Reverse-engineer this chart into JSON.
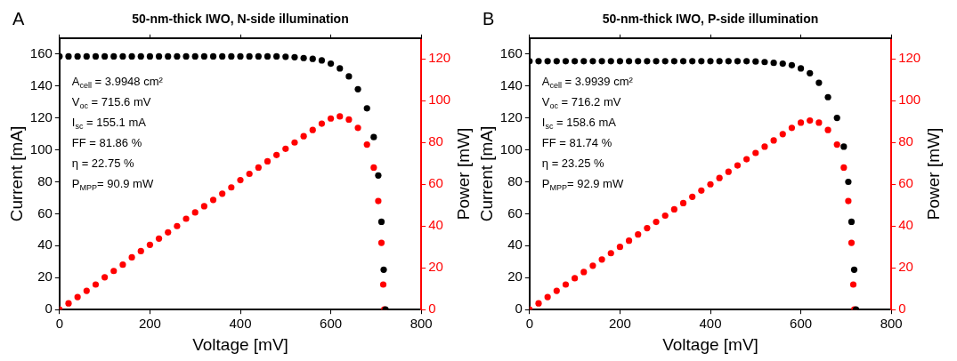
{
  "chart_data": [
    {
      "type": "scatter",
      "title": "50-nm-thick IWO, N-side illumination",
      "xlabel": "Voltage [mV]",
      "ylabel": "Current [mA]",
      "y2label": "Power [mW]",
      "xlim": [
        0,
        800
      ],
      "xticks": [
        0,
        200,
        400,
        600,
        800
      ],
      "ylim": [
        0,
        170
      ],
      "yticks": [
        0,
        20,
        40,
        60,
        80,
        100,
        120,
        140,
        160
      ],
      "y2lim": [
        0,
        130
      ],
      "y2ticks": [
        0,
        20,
        40,
        60,
        80,
        100,
        120
      ],
      "grid": false,
      "legend": false,
      "marker": "circle",
      "annotations": [
        "A",
        "A$_{cell}$ = 3.9948 cm²",
        "V$_{oc}$ = 715.6 mV",
        "I$_{sc}$ = 155.1 mA",
        "FF = 81.86 %",
        "η = 22.75 %",
        "P$_{MPP}$= 90.9 mW"
      ],
      "series": [
        {
          "color": "#000000",
          "x": [
            0,
            20,
            40,
            60,
            80,
            100,
            120,
            140,
            160,
            180,
            200,
            220,
            240,
            260,
            280,
            300,
            320,
            340,
            360,
            380,
            400,
            420,
            440,
            460,
            480,
            500,
            520,
            540,
            560,
            580,
            600,
            620,
            640,
            660,
            680,
            695,
            705,
            712,
            717,
            721
          ],
          "values": [
            158.5,
            158.5,
            158.5,
            158.5,
            158.5,
            158.5,
            158.5,
            158.5,
            158.5,
            158.5,
            158.5,
            158.5,
            158.5,
            158.5,
            158.5,
            158.5,
            158.5,
            158.5,
            158.5,
            158.5,
            158.5,
            158.5,
            158.5,
            158.5,
            158.5,
            158.3,
            158,
            157.5,
            157,
            156,
            154,
            151,
            146,
            138,
            126,
            108,
            84,
            55,
            25,
            0
          ]
        },
        {
          "color": "#ff0000",
          "axis": "y2",
          "x": [
            0,
            20,
            40,
            60,
            80,
            100,
            120,
            140,
            160,
            180,
            200,
            220,
            240,
            260,
            280,
            300,
            320,
            340,
            360,
            380,
            400,
            420,
            440,
            460,
            480,
            500,
            520,
            540,
            560,
            580,
            600,
            620,
            640,
            660,
            680,
            695,
            705,
            712,
            716,
            718
          ],
          "values": [
            0,
            3,
            6,
            9,
            12,
            15.5,
            18.5,
            21.5,
            25,
            28,
            31,
            34,
            37,
            40,
            43.5,
            46.5,
            49.5,
            52.5,
            55.5,
            58.5,
            62,
            65,
            68,
            71,
            74,
            77,
            80,
            83,
            86,
            89,
            91.5,
            92.5,
            91,
            87,
            79,
            68,
            52,
            32,
            12,
            0
          ]
        }
      ]
    },
    {
      "type": "scatter",
      "title": "50-nm-thick IWO, P-side illumination",
      "xlabel": "Voltage [mV]",
      "ylabel": "Current [mA]",
      "y2label": "Power [mW]",
      "xlim": [
        0,
        800
      ],
      "xticks": [
        0,
        200,
        400,
        600,
        800
      ],
      "ylim": [
        0,
        170
      ],
      "yticks": [
        0,
        20,
        40,
        60,
        80,
        100,
        120,
        140,
        160
      ],
      "y2lim": [
        0,
        130
      ],
      "y2ticks": [
        0,
        20,
        40,
        60,
        80,
        100,
        120
      ],
      "grid": false,
      "legend": false,
      "marker": "circle",
      "annotations": [
        "B",
        "A$_{cell}$ = 3.9939 cm²",
        "V$_{oc}$ = 716.2 mV",
        "I$_{sc}$ = 158.6 mA",
        "FF = 81.74 %",
        "η = 23.25 %",
        "P$_{MPP}$= 92.9 mW"
      ],
      "series": [
        {
          "color": "#000000",
          "x": [
            0,
            20,
            40,
            60,
            80,
            100,
            120,
            140,
            160,
            180,
            200,
            220,
            240,
            260,
            280,
            300,
            320,
            340,
            360,
            380,
            400,
            420,
            440,
            460,
            480,
            500,
            520,
            540,
            560,
            580,
            600,
            620,
            640,
            660,
            680,
            695,
            705,
            712,
            718,
            722
          ],
          "values": [
            155.5,
            155.5,
            155.5,
            155.5,
            155.5,
            155.5,
            155.5,
            155.5,
            155.5,
            155.5,
            155.5,
            155.5,
            155.5,
            155.5,
            155.5,
            155.5,
            155.5,
            155.5,
            155.5,
            155.5,
            155.5,
            155.5,
            155.5,
            155.5,
            155.5,
            155.3,
            155,
            154.5,
            154,
            153,
            151,
            148,
            142,
            133,
            120,
            102,
            80,
            55,
            25,
            0
          ]
        },
        {
          "color": "#ff0000",
          "axis": "y2",
          "x": [
            0,
            20,
            40,
            60,
            80,
            100,
            120,
            140,
            160,
            180,
            200,
            220,
            240,
            260,
            280,
            300,
            320,
            340,
            360,
            380,
            400,
            420,
            440,
            460,
            480,
            500,
            520,
            540,
            560,
            580,
            600,
            620,
            640,
            660,
            680,
            695,
            705,
            712,
            716,
            718
          ],
          "values": [
            0,
            3,
            6,
            9,
            12,
            15,
            18,
            21,
            24,
            27,
            30,
            33,
            36,
            39,
            42,
            45,
            48,
            51,
            54,
            57,
            60,
            63,
            66,
            69,
            72,
            75,
            78,
            81,
            84,
            87,
            89.5,
            90.5,
            89.5,
            86,
            79,
            68,
            52,
            32,
            12,
            0
          ]
        }
      ]
    }
  ]
}
